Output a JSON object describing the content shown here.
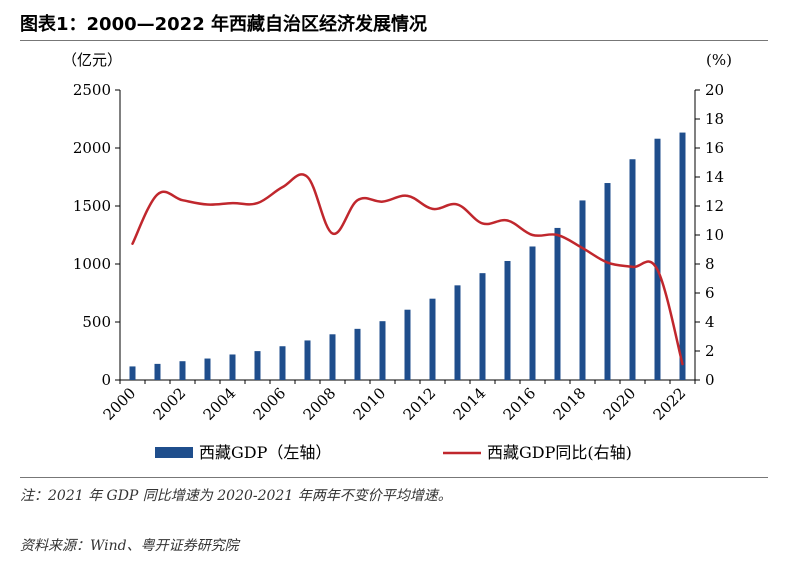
{
  "title": "图表1：2000—2022 年西藏自治区经济发展情况",
  "note": "注：2021 年 GDP 同比增速为 2020-2021 年两年不变价平均增速。",
  "source": "资料来源：Wind、粤开证券研究院",
  "colors": {
    "bar": "#1f4e8c",
    "line": "#c0272d",
    "axis": "#000000"
  },
  "chart_data": {
    "type": "bar",
    "x": [
      2000,
      2001,
      2002,
      2003,
      2004,
      2005,
      2006,
      2007,
      2008,
      2009,
      2010,
      2011,
      2012,
      2013,
      2014,
      2015,
      2016,
      2017,
      2018,
      2019,
      2020,
      2021,
      2022
    ],
    "x_tick_labels": [
      "2000",
      "2002",
      "2004",
      "2006",
      "2008",
      "2010",
      "2012",
      "2014",
      "2016",
      "2018",
      "2020",
      "2022"
    ],
    "left_unit": "（亿元）",
    "right_unit": "(%)",
    "left_ylim": [
      0,
      2500
    ],
    "left_ticks": [
      "0",
      "500",
      "1000",
      "1500",
      "2000",
      "2500"
    ],
    "right_ylim": [
      0,
      20
    ],
    "right_ticks": [
      "0",
      "2",
      "4",
      "6",
      "8",
      "10",
      "12",
      "14",
      "16",
      "18",
      "20"
    ],
    "grid": false,
    "legend_position": "bottom",
    "series": [
      {
        "name": "西藏GDP（左轴）",
        "type": "bar",
        "axis": "left",
        "values": [
          117,
          139,
          162,
          185,
          220,
          249,
          291,
          341,
          394,
          441,
          507,
          606,
          701,
          816,
          921,
          1026,
          1151,
          1311,
          1548,
          1698,
          1903,
          2080,
          2133
        ]
      },
      {
        "name": "西藏GDP同比(右轴)",
        "type": "line",
        "axis": "right",
        "values": [
          9.4,
          12.8,
          12.4,
          12.1,
          12.2,
          12.2,
          13.3,
          14.0,
          10.1,
          12.4,
          12.3,
          12.7,
          11.8,
          12.1,
          10.8,
          11.0,
          10.0,
          10.0,
          9.1,
          8.1,
          7.8,
          7.6,
          1.1
        ]
      }
    ]
  }
}
